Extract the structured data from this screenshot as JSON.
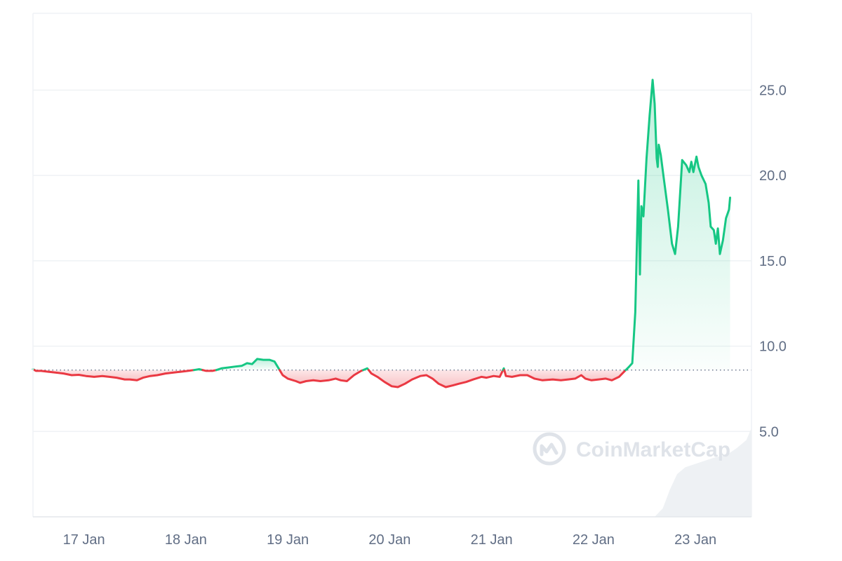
{
  "chart_data": {
    "type": "line",
    "title": "",
    "xlabel": "",
    "ylabel": "",
    "x_range": [
      0,
      7.05
    ],
    "x_range_note": "days from 17 Jan 00:00",
    "ylim": [
      0,
      29.5
    ],
    "x_ticks": [
      {
        "label": "17 Jan",
        "value": 0.5
      },
      {
        "label": "18 Jan",
        "value": 1.5
      },
      {
        "label": "19 Jan",
        "value": 2.5
      },
      {
        "label": "20 Jan",
        "value": 3.5
      },
      {
        "label": "21 Jan",
        "value": 4.5
      },
      {
        "label": "22 Jan",
        "value": 5.5
      },
      {
        "label": "23 Jan",
        "value": 6.5
      }
    ],
    "y_ticks": [
      {
        "label": "5.0",
        "value": 5
      },
      {
        "label": "10.0",
        "value": 10
      },
      {
        "label": "15.0",
        "value": 15
      },
      {
        "label": "20.0",
        "value": 20
      },
      {
        "label": "25.0",
        "value": 25
      }
    ],
    "grid": true,
    "baseline": 8.6,
    "colors": {
      "up": "#16c784",
      "down": "#ea3943",
      "up_fill": "#16c784",
      "down_fill": "#ea3943",
      "grid": "#eff2f5",
      "baseline": "#616e85",
      "volume": "#eef1f4"
    },
    "series": [
      {
        "points": [
          [
            0.0,
            8.65
          ],
          [
            0.03,
            8.55
          ],
          [
            0.08,
            8.55
          ],
          [
            0.15,
            8.5
          ],
          [
            0.22,
            8.45
          ],
          [
            0.3,
            8.4
          ],
          [
            0.38,
            8.3
          ],
          [
            0.45,
            8.32
          ],
          [
            0.52,
            8.25
          ],
          [
            0.6,
            8.2
          ],
          [
            0.68,
            8.25
          ],
          [
            0.75,
            8.2
          ],
          [
            0.82,
            8.15
          ],
          [
            0.9,
            8.05
          ],
          [
            0.95,
            8.05
          ],
          [
            1.02,
            8.0
          ],
          [
            1.08,
            8.15
          ],
          [
            1.15,
            8.25
          ],
          [
            1.22,
            8.3
          ],
          [
            1.3,
            8.4
          ],
          [
            1.38,
            8.45
          ],
          [
            1.45,
            8.5
          ],
          [
            1.52,
            8.55
          ],
          [
            1.58,
            8.6
          ],
          [
            1.63,
            8.65
          ],
          [
            1.7,
            8.55
          ],
          [
            1.76,
            8.55
          ],
          [
            1.8,
            8.6
          ],
          [
            1.85,
            8.7
          ],
          [
            1.92,
            8.75
          ],
          [
            1.98,
            8.8
          ],
          [
            2.05,
            8.85
          ],
          [
            2.1,
            9.0
          ],
          [
            2.15,
            8.95
          ],
          [
            2.2,
            9.25
          ],
          [
            2.26,
            9.2
          ],
          [
            2.32,
            9.2
          ],
          [
            2.37,
            9.1
          ],
          [
            2.4,
            8.8
          ],
          [
            2.45,
            8.3
          ],
          [
            2.5,
            8.1
          ],
          [
            2.58,
            7.95
          ],
          [
            2.62,
            7.85
          ],
          [
            2.68,
            7.95
          ],
          [
            2.75,
            8.0
          ],
          [
            2.82,
            7.95
          ],
          [
            2.9,
            8.0
          ],
          [
            2.97,
            8.1
          ],
          [
            3.02,
            8.0
          ],
          [
            3.08,
            7.95
          ],
          [
            3.15,
            8.3
          ],
          [
            3.22,
            8.55
          ],
          [
            3.28,
            8.7
          ],
          [
            3.32,
            8.4
          ],
          [
            3.38,
            8.2
          ],
          [
            3.45,
            7.9
          ],
          [
            3.52,
            7.65
          ],
          [
            3.58,
            7.6
          ],
          [
            3.65,
            7.8
          ],
          [
            3.72,
            8.05
          ],
          [
            3.8,
            8.25
          ],
          [
            3.86,
            8.3
          ],
          [
            3.92,
            8.1
          ],
          [
            3.98,
            7.8
          ],
          [
            4.05,
            7.6
          ],
          [
            4.12,
            7.7
          ],
          [
            4.18,
            7.8
          ],
          [
            4.25,
            7.9
          ],
          [
            4.32,
            8.05
          ],
          [
            4.4,
            8.2
          ],
          [
            4.45,
            8.15
          ],
          [
            4.52,
            8.25
          ],
          [
            4.58,
            8.2
          ],
          [
            4.62,
            8.7
          ],
          [
            4.64,
            8.25
          ],
          [
            4.7,
            8.2
          ],
          [
            4.78,
            8.3
          ],
          [
            4.85,
            8.3
          ],
          [
            4.92,
            8.1
          ],
          [
            5.0,
            8.0
          ],
          [
            5.1,
            8.05
          ],
          [
            5.18,
            8.0
          ],
          [
            5.25,
            8.05
          ],
          [
            5.32,
            8.1
          ],
          [
            5.38,
            8.3
          ],
          [
            5.42,
            8.1
          ],
          [
            5.48,
            8.0
          ],
          [
            5.55,
            8.05
          ],
          [
            5.62,
            8.1
          ],
          [
            5.68,
            8.0
          ],
          [
            5.75,
            8.2
          ],
          [
            5.8,
            8.5
          ],
          [
            5.85,
            8.8
          ],
          [
            5.88,
            9.0
          ],
          [
            5.91,
            12.0
          ],
          [
            5.94,
            19.7
          ],
          [
            5.955,
            14.2
          ],
          [
            5.97,
            18.2
          ],
          [
            5.99,
            17.6
          ],
          [
            6.02,
            21.0
          ],
          [
            6.05,
            23.5
          ],
          [
            6.08,
            25.6
          ],
          [
            6.1,
            24.2
          ],
          [
            6.12,
            21.0
          ],
          [
            6.13,
            20.5
          ],
          [
            6.14,
            21.8
          ],
          [
            6.16,
            21.2
          ],
          [
            6.19,
            19.8
          ],
          [
            6.23,
            18.0
          ],
          [
            6.27,
            16.0
          ],
          [
            6.3,
            15.4
          ],
          [
            6.33,
            17.0
          ],
          [
            6.37,
            20.9
          ],
          [
            6.41,
            20.6
          ],
          [
            6.44,
            20.2
          ],
          [
            6.46,
            20.8
          ],
          [
            6.48,
            20.2
          ],
          [
            6.51,
            21.1
          ],
          [
            6.53,
            20.5
          ],
          [
            6.56,
            20.0
          ],
          [
            6.6,
            19.5
          ],
          [
            6.63,
            18.4
          ],
          [
            6.65,
            17.0
          ],
          [
            6.68,
            16.8
          ],
          [
            6.7,
            16.0
          ],
          [
            6.72,
            16.9
          ],
          [
            6.74,
            15.4
          ],
          [
            6.77,
            16.2
          ],
          [
            6.8,
            17.5
          ],
          [
            6.83,
            18.0
          ],
          [
            6.84,
            18.7
          ]
        ]
      }
    ],
    "volume": [
      [
        6.1,
        0.0
      ],
      [
        6.18,
        0.5
      ],
      [
        6.25,
        1.6
      ],
      [
        6.32,
        2.5
      ],
      [
        6.4,
        2.9
      ],
      [
        6.5,
        3.1
      ],
      [
        6.6,
        3.3
      ],
      [
        6.7,
        3.5
      ],
      [
        6.8,
        3.6
      ],
      [
        6.9,
        4.0
      ],
      [
        7.0,
        4.5
      ],
      [
        7.05,
        5.2
      ]
    ]
  },
  "watermark": {
    "text": "CoinMarketCap",
    "icon": "coinmarketcap-logo-icon"
  }
}
